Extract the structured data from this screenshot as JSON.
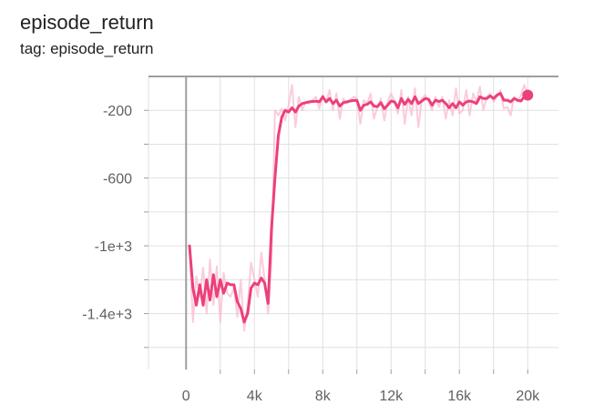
{
  "header": {
    "title": "episode_return",
    "tag": "tag: episode_return"
  },
  "chart_data": {
    "type": "line",
    "title": "episode_return",
    "xlabel": "",
    "ylabel": "",
    "xlim": [
      -2200,
      21800
    ],
    "ylim": [
      -1730,
      0
    ],
    "x_ticks": [
      0,
      4000,
      8000,
      12000,
      16000,
      20000
    ],
    "x_tick_labels": [
      "0",
      "4k",
      "8k",
      "12k",
      "16k",
      "20k"
    ],
    "y_ticks": [
      -200,
      -600,
      -1000,
      -1400
    ],
    "y_tick_labels": [
      "-200",
      "-600",
      "-1e+3",
      "-1.4e+3"
    ],
    "grid": true,
    "colors": {
      "smoothed": "#ec407a",
      "raw": "#f8bbd0",
      "axis": "#9e9e9e",
      "grid": "#e0e0e0"
    },
    "series": [
      {
        "kind": "raw",
        "x": [
          200,
          400,
          600,
          800,
          1000,
          1200,
          1400,
          1600,
          1800,
          2000,
          2200,
          2400,
          2600,
          2800,
          3000,
          3200,
          3400,
          3600,
          3800,
          4000,
          4200,
          4400,
          4600,
          4800,
          5000,
          5200,
          5400,
          5600,
          5800,
          6000,
          6200,
          6400,
          6600,
          6800,
          7000,
          7200,
          7400,
          7600,
          7800,
          8000,
          8200,
          8400,
          8600,
          8800,
          9000,
          9200,
          9400,
          9600,
          9800,
          10000,
          10200,
          10400,
          10600,
          10800,
          11000,
          11200,
          11400,
          11600,
          11800,
          12000,
          12200,
          12400,
          12600,
          12800,
          13000,
          13200,
          13400,
          13600,
          13800,
          14000,
          14200,
          14400,
          14600,
          14800,
          15000,
          15200,
          15400,
          15600,
          15800,
          16000,
          16200,
          16400,
          16600,
          16800,
          17000,
          17200,
          17400,
          17600,
          17800,
          18000,
          18200,
          18400,
          18600,
          18800,
          19000,
          19200,
          19400,
          19600,
          19800,
          20000
        ],
        "y": [
          -1000,
          -1450,
          -1180,
          -1300,
          -1130,
          -1400,
          -1080,
          -1350,
          -1120,
          -1450,
          -1160,
          -1280,
          -1300,
          -1250,
          -1420,
          -1200,
          -1500,
          -1350,
          -1100,
          -1200,
          -1300,
          -1040,
          -1200,
          -1400,
          -1100,
          -200,
          -230,
          -190,
          -260,
          -170,
          -50,
          -300,
          -120,
          -200,
          -150,
          -160,
          -140,
          -120,
          -190,
          -110,
          -150,
          -80,
          -200,
          -100,
          -250,
          -130,
          -160,
          -140,
          -120,
          -130,
          -280,
          -140,
          -160,
          -100,
          -250,
          -180,
          -130,
          -260,
          -150,
          -100,
          -150,
          -220,
          -80,
          -280,
          -120,
          -230,
          -70,
          -300,
          -130,
          -110,
          -150,
          -200,
          -120,
          -180,
          -120,
          -250,
          -140,
          -230,
          -70,
          -220,
          -200,
          -80,
          -230,
          -100,
          -150,
          -60,
          -200,
          -120,
          -100,
          -150,
          -120,
          -80,
          -190,
          -180,
          -230,
          -120,
          -150,
          -110,
          -50,
          -110
        ],
        "name": ""
      },
      {
        "kind": "smoothed",
        "x": [
          200,
          400,
          600,
          800,
          1000,
          1200,
          1400,
          1600,
          1800,
          2000,
          2200,
          2400,
          2600,
          2800,
          3000,
          3200,
          3400,
          3600,
          3800,
          4000,
          4200,
          4400,
          4600,
          4800,
          5000,
          5200,
          5400,
          5600,
          5800,
          6000,
          6200,
          6400,
          6600,
          6800,
          7000,
          7200,
          7400,
          7600,
          7800,
          8000,
          8200,
          8400,
          8600,
          8800,
          9000,
          9200,
          9400,
          9600,
          9800,
          10000,
          10200,
          10400,
          10600,
          10800,
          11000,
          11200,
          11400,
          11600,
          11800,
          12000,
          12200,
          12400,
          12600,
          12800,
          13000,
          13200,
          13400,
          13600,
          13800,
          14000,
          14200,
          14400,
          14600,
          14800,
          15000,
          15200,
          15400,
          15600,
          15800,
          16000,
          16200,
          16400,
          16600,
          16800,
          17000,
          17200,
          17400,
          17600,
          17800,
          18000,
          18200,
          18400,
          18600,
          18800,
          19000,
          19200,
          19400,
          19600,
          19800,
          20000
        ],
        "y": [
          -1000,
          -1250,
          -1350,
          -1230,
          -1350,
          -1200,
          -1320,
          -1170,
          -1300,
          -1200,
          -1280,
          -1220,
          -1230,
          -1230,
          -1330,
          -1370,
          -1450,
          -1400,
          -1250,
          -1220,
          -1230,
          -1190,
          -1220,
          -1340,
          -900,
          -600,
          -350,
          -240,
          -200,
          -210,
          -185,
          -210,
          -175,
          -160,
          -155,
          -150,
          -148,
          -146,
          -150,
          -120,
          -150,
          -130,
          -160,
          -140,
          -175,
          -155,
          -150,
          -145,
          -142,
          -142,
          -200,
          -170,
          -165,
          -150,
          -175,
          -178,
          -155,
          -190,
          -170,
          -145,
          -150,
          -185,
          -130,
          -165,
          -135,
          -160,
          -120,
          -160,
          -145,
          -130,
          -135,
          -170,
          -140,
          -148,
          -140,
          -160,
          -185,
          -160,
          -185,
          -150,
          -170,
          -150,
          -145,
          -150,
          -160,
          -120,
          -130,
          -130,
          -115,
          -130,
          -110,
          -100,
          -140,
          -140,
          -150,
          -130,
          -140,
          -145,
          -120,
          -110
        ],
        "name": ""
      }
    ],
    "last_point": {
      "x": 20000,
      "y": -110
    }
  }
}
